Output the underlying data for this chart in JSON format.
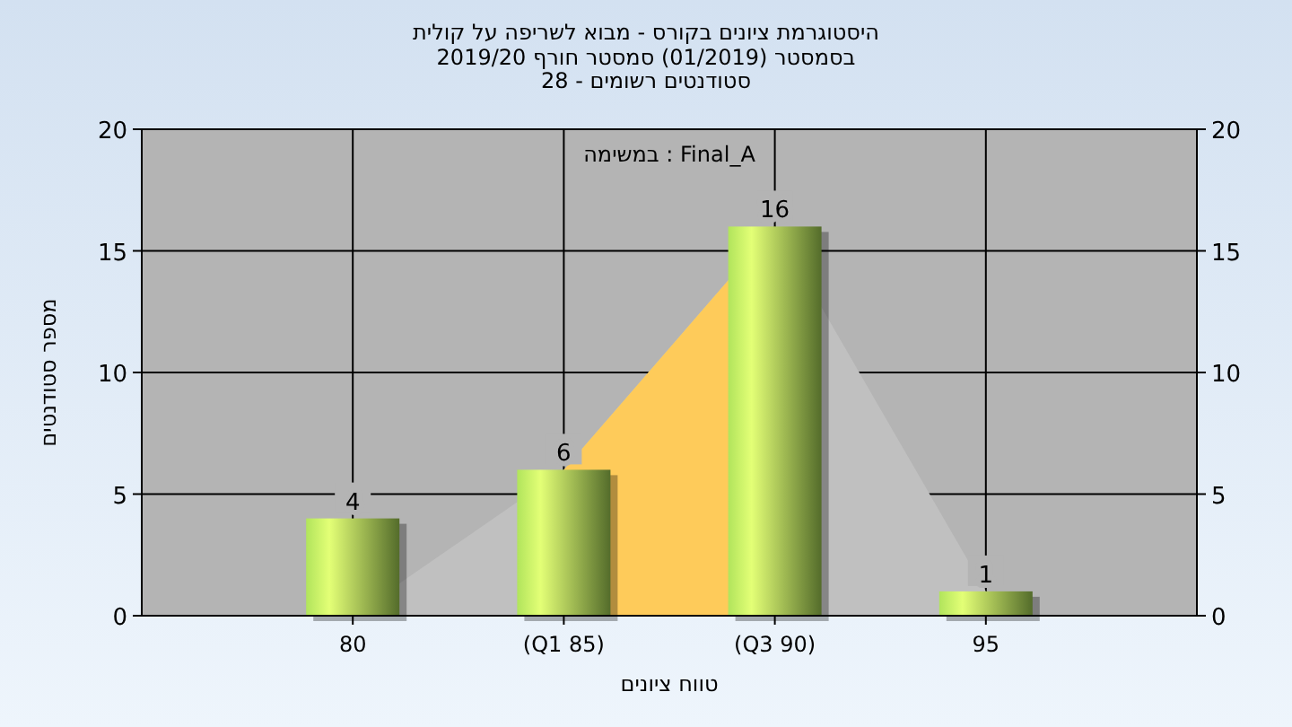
{
  "chart_data": {
    "type": "bar",
    "title": "היסטוגרמת ציונים בקורס - מבוא לשריפה על קולית",
    "subtitle": "בסמסטר  (01/2019)  סמסטר חורף 2019/20\nסטודנטים רשומים - 28",
    "xlabel": "טווח ציונים",
    "ylabel": "מספר סטודנטים",
    "annotations": [
      "במשימה : Final_A"
    ],
    "categories": [
      "80",
      "(Q1 85)",
      "(Q3 90)",
      "95"
    ],
    "series": [
      {
        "type": "area",
        "color": "#c0c0c0",
        "values": [
          0,
          6,
          16,
          1
        ]
      },
      {
        "type": "area",
        "color": "#fecb5a",
        "values": [
          null,
          6,
          16,
          null
        ]
      },
      {
        "color": "#8fb84a",
        "values": [
          4,
          6,
          16,
          1
        ],
        "value_labels": [
          "4",
          "6",
          "16",
          "1"
        ]
      }
    ],
    "ylim": [
      0,
      20
    ],
    "yticks": [
      0,
      5,
      10,
      15,
      20
    ],
    "y2lim": [
      0,
      20
    ],
    "y2ticks": [
      0,
      5,
      10,
      15,
      20
    ],
    "grid": true
  }
}
